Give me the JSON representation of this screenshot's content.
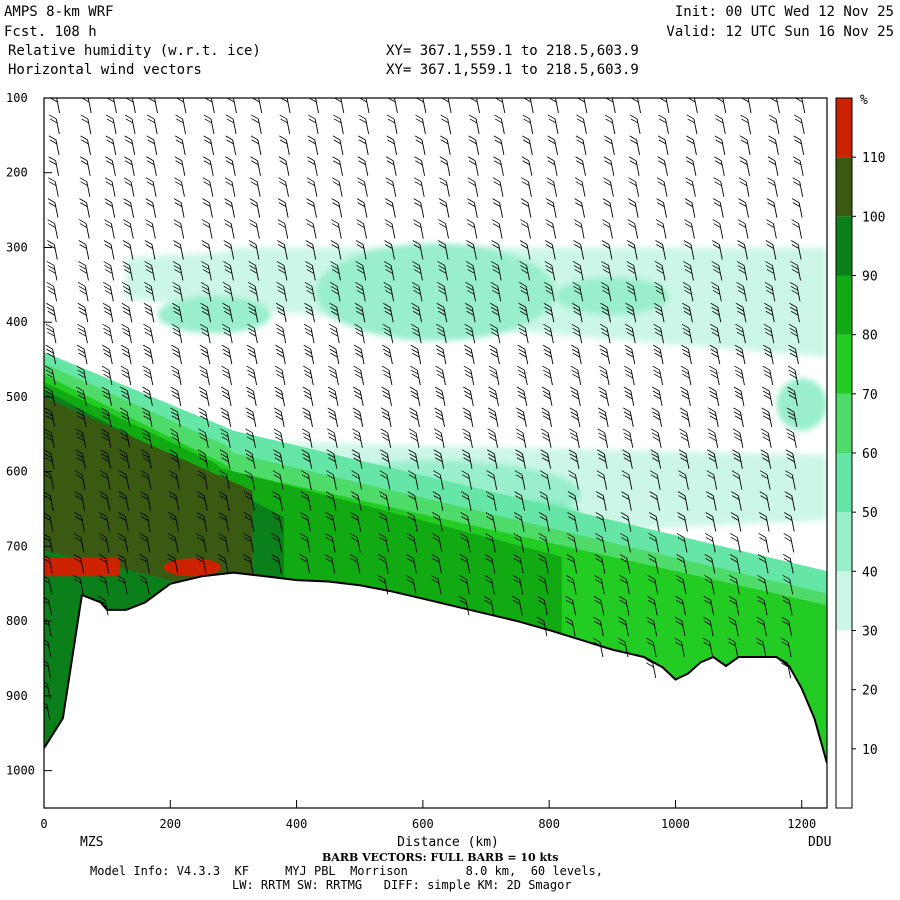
{
  "header": {
    "model": "AMPS 8-km WRF",
    "forecast": "Fcst. 108 h",
    "field1": "Relative humidity (w.r.t. ice)",
    "field2": "Horizontal wind vectors",
    "xy1": "XY= 367.1,559.1 to 218.5,603.9",
    "xy2": "XY= 367.1,559.1 to 218.5,603.9",
    "init": "Init: 00 UTC Wed 12 Nov 25",
    "valid": "Valid: 12 UTC Sun 16 Nov 25"
  },
  "footer": {
    "barb_note": "BARB VECTORS: FULL BARB = 10 kts",
    "model_info": "Model Info: V4.3.3  KF     MYJ PBL  Morrison        8.0 km,  60 levels,",
    "physics": "LW: RRTM SW: RRTMG   DIFF: simple KM: 2D Smagor"
  },
  "colors": {
    "c0_10": "#ffffff",
    "c10_20": "#ffffff",
    "c20_30": "#ffffff",
    "c30_40": "#ccf7e6",
    "c40_50": "#99eecc",
    "c50_60": "#66e6a6",
    "c60_70": "#4fdb6a",
    "c70_80": "#22cc22",
    "c80_90": "#12aa12",
    "c90_100": "#0a7f1a",
    "c100_110": "#3a5a12",
    "c110_plus": "#cc2200"
  },
  "chart_data": {
    "type": "heatmap",
    "title": "Relative humidity (w.r.t. ice)",
    "xlabel": "Distance (km)",
    "ylabel": "",
    "xlim": [
      0,
      1240
    ],
    "ylim_pressure_hPa": [
      1050,
      100
    ],
    "x_ticks": [
      0,
      200,
      400,
      600,
      800,
      1000,
      1200
    ],
    "y_ticks": [
      100,
      200,
      300,
      400,
      500,
      600,
      700,
      800,
      900,
      1000
    ],
    "endpoint_labels": {
      "left": "MZS",
      "right": "DDU"
    },
    "colorbar": {
      "unit": "%",
      "levels": [
        10,
        20,
        30,
        40,
        50,
        60,
        70,
        80,
        90,
        100,
        110
      ],
      "colors": [
        "#ffffff",
        "#ffffff",
        "#ffffff",
        "#ccf7e6",
        "#99eecc",
        "#66e6a6",
        "#4fdb6a",
        "#22cc22",
        "#12aa12",
        "#0a7f1a",
        "#3a5a12",
        "#cc2200"
      ]
    },
    "terrain_surface_pressure": {
      "x": [
        0,
        30,
        60,
        90,
        100,
        130,
        160,
        200,
        250,
        300,
        350,
        400,
        450,
        500,
        550,
        600,
        650,
        700,
        750,
        800,
        850,
        900,
        950,
        980,
        1000,
        1020,
        1040,
        1060,
        1080,
        1100,
        1130,
        1160,
        1180,
        1200,
        1220,
        1240
      ],
      "y": [
        970,
        930,
        765,
        775,
        785,
        785,
        775,
        750,
        740,
        735,
        740,
        745,
        747,
        752,
        760,
        770,
        780,
        790,
        800,
        812,
        825,
        838,
        848,
        862,
        878,
        870,
        855,
        848,
        860,
        848,
        848,
        848,
        860,
        890,
        930,
        990
      ]
    },
    "rh_regions": [
      {
        "band": "30-40",
        "x": [
          130,
          1240
        ],
        "p": [
          280,
          450
        ]
      },
      {
        "band": "40-50",
        "x": [
          380,
          620
        ],
        "p": [
          300,
          390
        ]
      },
      {
        "band": "30-40",
        "x": [
          400,
          1000
        ],
        "p": [
          560,
          700
        ]
      },
      {
        "band": "50-60",
        "x": [
          0,
          1240
        ],
        "p": [
          480,
          900
        ]
      },
      {
        "band": "90-100",
        "x": [
          0,
          380
        ],
        "p": [
          460,
          790
        ]
      },
      {
        "band": "100-110",
        "x": [
          0,
          320
        ],
        "p": [
          470,
          760
        ]
      },
      {
        "band": "110+",
        "x": [
          0,
          280
        ],
        "p": [
          710,
          780
        ]
      }
    ],
    "wind_barb_columns_km": [
      20,
      70,
      110,
      140,
      175,
      220,
      265,
      300,
      340,
      385,
      430,
      470,
      510,
      555,
      600,
      640,
      685,
      725,
      770,
      810,
      855,
      900,
      940,
      985,
      1030,
      1075,
      1115,
      1160,
      1200
    ]
  }
}
